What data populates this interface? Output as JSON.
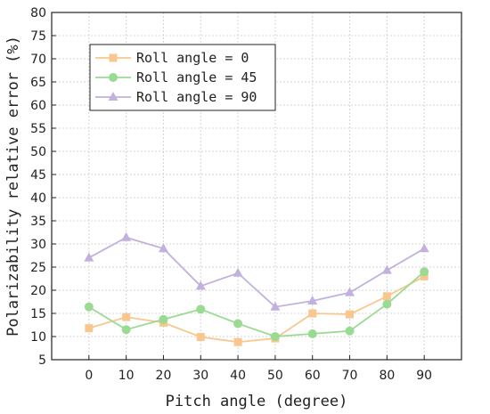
{
  "chart_data": {
    "type": "line",
    "xlabel": "Pitch angle (degree)",
    "ylabel": "Polarizability relative error (%)",
    "x": [
      0,
      10,
      20,
      30,
      40,
      50,
      60,
      70,
      80,
      90
    ],
    "x_ticks": [
      "0",
      "10",
      "20",
      "30",
      "40",
      "50",
      "60",
      "70",
      "80",
      "90"
    ],
    "y_ticks": [
      "5",
      "10",
      "15",
      "20",
      "25",
      "30",
      "35",
      "40",
      "45",
      "50",
      "55",
      "60",
      "65",
      "70",
      "75",
      "80"
    ],
    "xlim": [
      -10,
      100
    ],
    "ylim": [
      5,
      80
    ],
    "grid": true,
    "legend_position": "top-left",
    "series": [
      {
        "name": "Roll angle = 0",
        "marker": "square",
        "color": "#F9C78E",
        "values": [
          11.8,
          14.2,
          13.0,
          9.9,
          8.8,
          9.6,
          15.0,
          14.8,
          18.7,
          23.0
        ]
      },
      {
        "name": "Roll angle = 45",
        "marker": "circle",
        "color": "#9ADB93",
        "values": [
          16.4,
          11.5,
          13.7,
          15.9,
          12.8,
          10.0,
          10.6,
          11.2,
          17.0,
          24.0
        ]
      },
      {
        "name": "Roll angle = 90",
        "marker": "triangle",
        "color": "#C2B1DE",
        "values": [
          27.0,
          31.4,
          29.0,
          20.9,
          23.7,
          16.4,
          17.7,
          19.5,
          24.3,
          29.0
        ]
      }
    ]
  }
}
